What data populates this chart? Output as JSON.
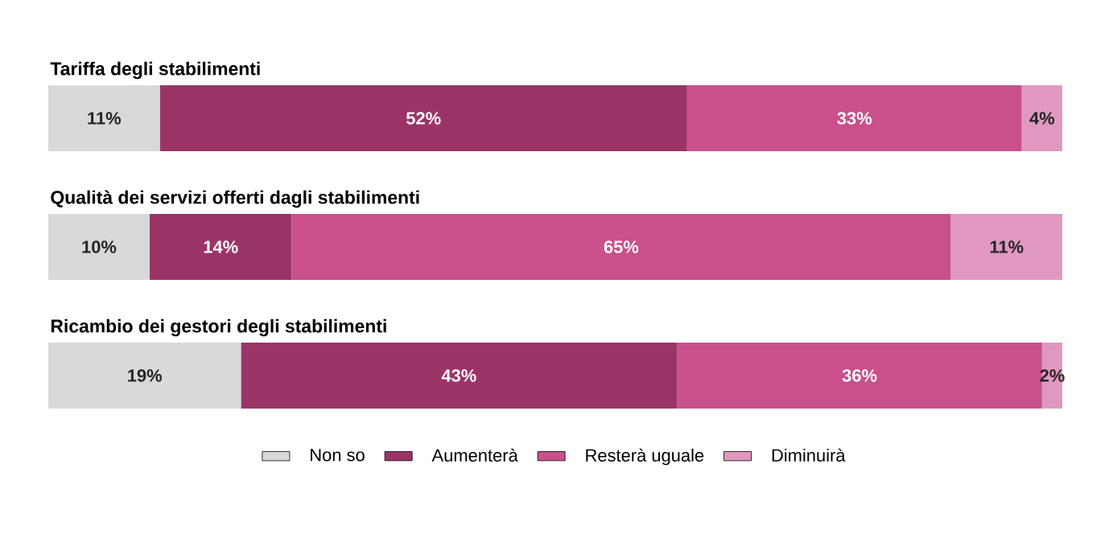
{
  "chart_data": {
    "type": "bar",
    "orientation": "horizontal",
    "stacked": true,
    "legend": "bottom",
    "categories": [
      "Tariffa degli stabilimenti",
      "Qualità dei servizi offerti dagli stabilimenti",
      "Ricambio dei gestori degli stabilimenti"
    ],
    "series": [
      {
        "name": "Non so",
        "color": "#d9d9d9",
        "values": [
          11,
          10,
          19
        ],
        "value_labels": [
          "11%",
          "10%",
          "19%"
        ]
      },
      {
        "name": "Aumenterà",
        "color": "#9b3466",
        "values": [
          52,
          14,
          43
        ],
        "value_labels": [
          "52%",
          "14%",
          "43%"
        ]
      },
      {
        "name": "Resterà uguale",
        "color": "#c9508a",
        "values": [
          33,
          65,
          36
        ],
        "value_labels": [
          "33%",
          "65%",
          "36%"
        ]
      },
      {
        "name": "Diminuirà",
        "color": "#e198c0",
        "values": [
          4,
          11,
          2
        ],
        "value_labels": [
          "4%",
          "11%",
          "2%"
        ]
      }
    ]
  }
}
